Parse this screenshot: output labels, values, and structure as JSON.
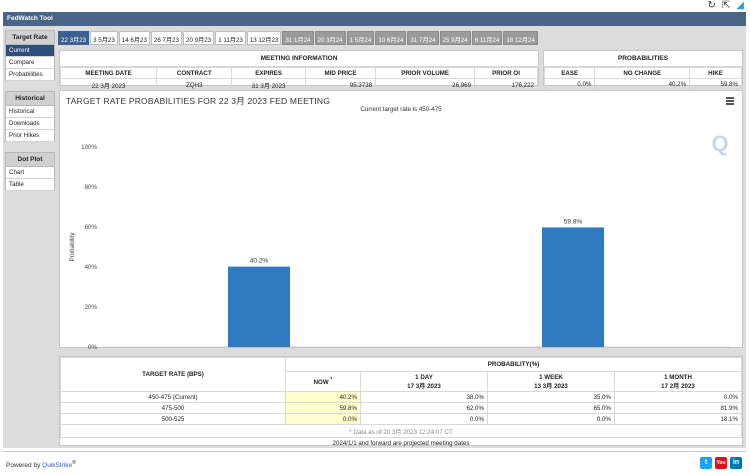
{
  "app": {
    "title": "FedWatch Tool"
  },
  "sidebar": {
    "groups": [
      {
        "header": "Target Rate",
        "items": [
          {
            "label": "Current",
            "active": true
          },
          {
            "label": "Compare",
            "active": false
          },
          {
            "label": "Probabilities",
            "active": false
          }
        ]
      },
      {
        "header": "Historical",
        "items": [
          {
            "label": "Historical",
            "active": false
          },
          {
            "label": "Downloads",
            "active": false
          },
          {
            "label": "Prior Hikes",
            "active": false
          }
        ]
      },
      {
        "header": "Dot Plot",
        "items": [
          {
            "label": "Chart",
            "active": false
          },
          {
            "label": "Table",
            "active": false
          }
        ]
      }
    ]
  },
  "tabs": [
    {
      "label": "22 3月23",
      "state": "active"
    },
    {
      "label": "3 5月23",
      "state": "normal"
    },
    {
      "label": "14 6月23",
      "state": "normal"
    },
    {
      "label": "26 7月23",
      "state": "normal"
    },
    {
      "label": "20 9月23",
      "state": "normal"
    },
    {
      "label": "1 11月23",
      "state": "normal"
    },
    {
      "label": "13 12月23",
      "state": "normal"
    },
    {
      "label": "31 1月24",
      "state": "future"
    },
    {
      "label": "20 3月24",
      "state": "future"
    },
    {
      "label": "1 5月24",
      "state": "future"
    },
    {
      "label": "10 6月24",
      "state": "future"
    },
    {
      "label": "31 7月24",
      "state": "future"
    },
    {
      "label": "25 9月24",
      "state": "future"
    },
    {
      "label": "6 11月24",
      "state": "future"
    },
    {
      "label": "18 12月24",
      "state": "future"
    }
  ],
  "meeting_info": {
    "title": "MEETING INFORMATION",
    "headers": [
      "MEETING DATE",
      "CONTRACT",
      "EXPIRES",
      "MID PRICE",
      "PRIOR VOLUME",
      "PRIOR OI"
    ],
    "row": [
      "22 3月 2023",
      "ZQH3",
      "31 3月 2023",
      "95.3738",
      "26,969",
      "176,222"
    ]
  },
  "probabilities_box": {
    "title": "PROBABILITIES",
    "headers": [
      "EASE",
      "NO CHANGE",
      "HIKE"
    ],
    "row": [
      "0.0%",
      "40.2%",
      "59.8%"
    ]
  },
  "chart": {
    "title": "TARGET RATE PROBABILITIES FOR 22 3月 2023 FED MEETING",
    "subtitle": "Current target rate is 450-475",
    "watermark": "Q"
  },
  "chart_data": {
    "type": "bar",
    "categories": [
      "450-475",
      "475-500"
    ],
    "values": [
      40.2,
      59.8
    ],
    "value_labels": [
      "40.2%",
      "59.8%"
    ],
    "title": "TARGET RATE PROBABILITIES FOR 22 3月 2023 FED MEETING",
    "xlabel": "Target Rate (in bps)",
    "ylabel": "Probability",
    "ylim": [
      0,
      100
    ],
    "yticks": [
      "0%",
      "20%",
      "40%",
      "60%",
      "80%",
      "100%"
    ],
    "bar_color": "#2e7bbf",
    "grid": false
  },
  "prob_table": {
    "col_rate": "TARGET RATE (BPS)",
    "group": "PROBABILITY(%)",
    "cols": [
      {
        "l1": "NOW",
        "l2": ""
      },
      {
        "l1": "1 DAY",
        "l2": "17 3月 2023"
      },
      {
        "l1": "1 WEEK",
        "l2": "13 3月 2023"
      },
      {
        "l1": "1 MONTH",
        "l2": "17 2月 2023"
      }
    ],
    "now_marker": "*",
    "rows": [
      {
        "rate": "450-475 (Current)",
        "now": "40.2%",
        "day": "38.0%",
        "week": "35.0%",
        "month": "0.0%"
      },
      {
        "rate": "475-500",
        "now": "59.8%",
        "day": "62.0%",
        "week": "65.0%",
        "month": "81.9%"
      },
      {
        "rate": "500-525",
        "now": "0.0%",
        "day": "0.0%",
        "week": "0.0%",
        "month": "18.1%"
      }
    ],
    "note": "* Data as of 20 3月 2023 12:24:07 CT",
    "footnote": "2024/1/1 and forward are projected meeting dates"
  },
  "footer": {
    "powered_prefix": "Powered by",
    "powered_brand": "QuikStrike",
    "powered_reg": "®"
  },
  "colors": {
    "titlebar": "#4a6488",
    "active_tab": "#3b5f8f",
    "future_tab": "#9a9a9a",
    "bar": "#2e7bbf",
    "highlight": "#ffffcc"
  }
}
